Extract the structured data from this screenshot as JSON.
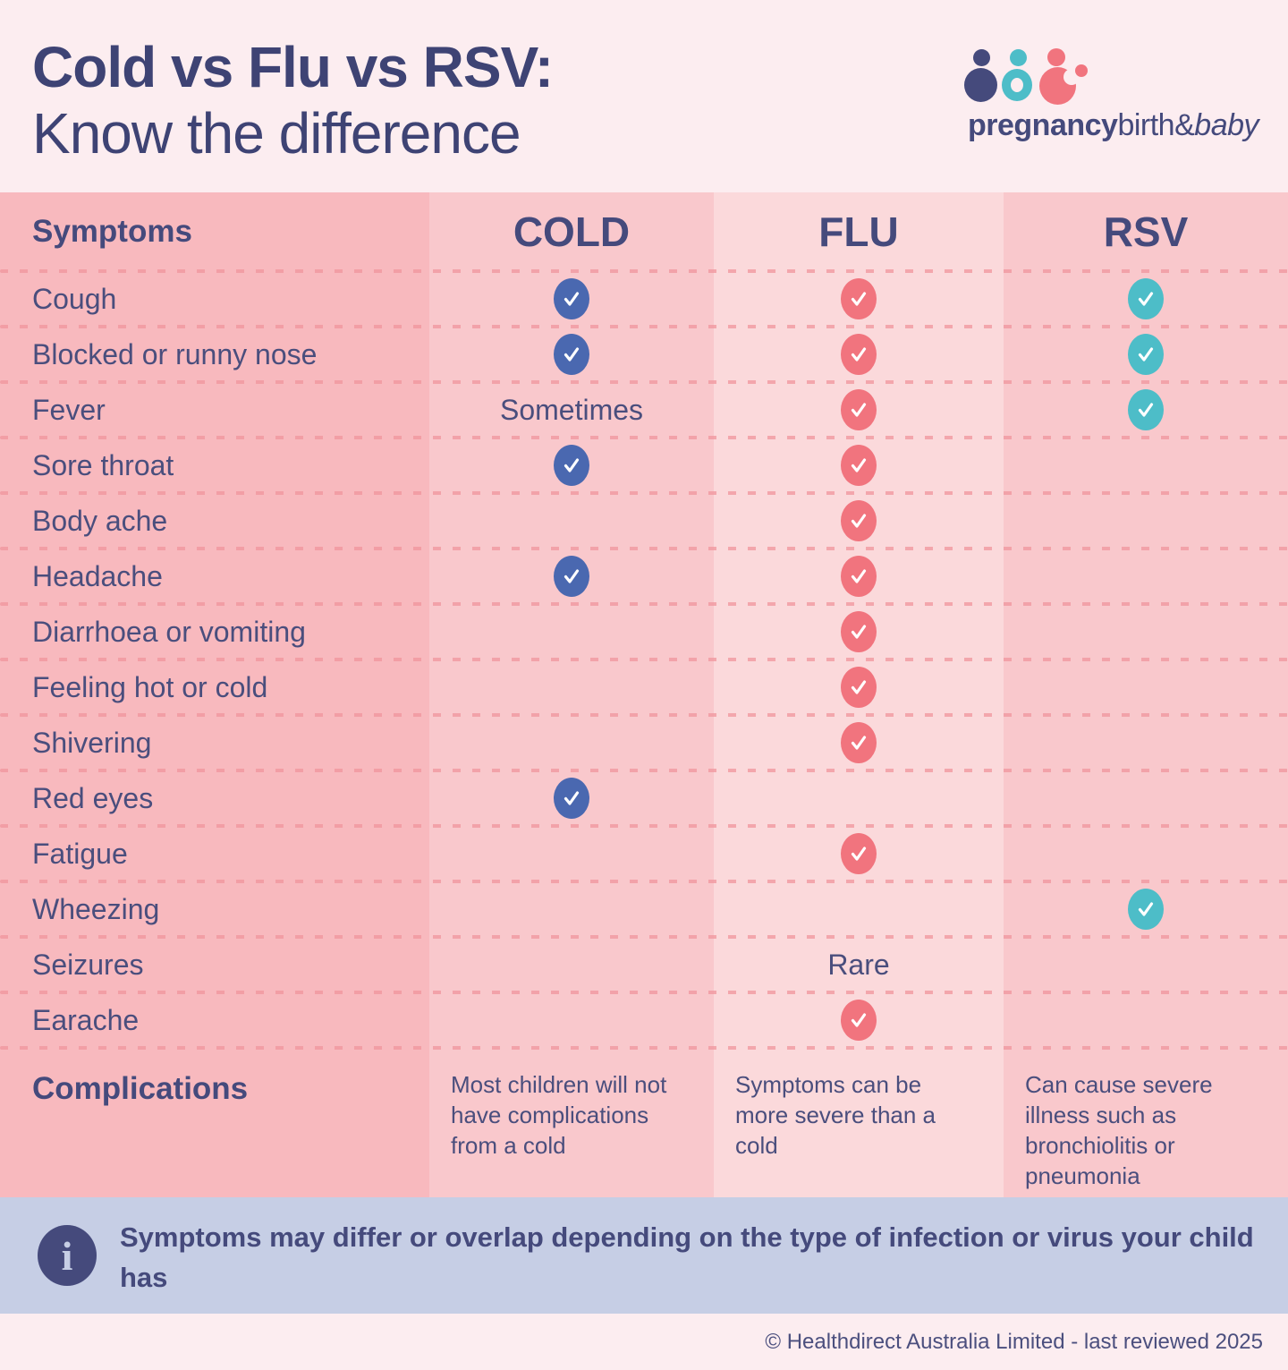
{
  "colors": {
    "navy": "#454a7c",
    "page_bg": "#fcedf0",
    "col_symptoms_bg": "#f8b9be",
    "col_cold_bg": "#f9c8cc",
    "col_flu_bg": "#fbd9db",
    "col_rsv_bg": "#f9c8cc",
    "check_blue": "#4a68b0",
    "check_red": "#f1747e",
    "check_teal": "#4dbdc8",
    "info_bar_bg": "#c6cee5",
    "dots": "#f0959d"
  },
  "header": {
    "title_line1": "Cold vs Flu vs RSV:",
    "title_line2": "Know the difference",
    "logo": {
      "part_bold": "pregnancy",
      "part_regular": "birth&",
      "part_italic": "baby"
    }
  },
  "table": {
    "columns": {
      "symptoms": "Symptoms",
      "cold": "COLD",
      "flu": "FLU",
      "rsv": "RSV"
    },
    "rows": [
      {
        "label": "Cough",
        "cold": "check-blue",
        "flu": "check-red",
        "rsv": "check-teal"
      },
      {
        "label": "Blocked or runny nose",
        "cold": "check-blue",
        "flu": "check-red",
        "rsv": "check-teal"
      },
      {
        "label": "Fever",
        "cold": "Sometimes",
        "flu": "check-red",
        "rsv": "check-teal"
      },
      {
        "label": "Sore throat",
        "cold": "check-blue",
        "flu": "check-red",
        "rsv": ""
      },
      {
        "label": "Body ache",
        "cold": "",
        "flu": "check-red",
        "rsv": ""
      },
      {
        "label": "Headache",
        "cold": "check-blue",
        "flu": "check-red",
        "rsv": ""
      },
      {
        "label": "Diarrhoea or vomiting",
        "cold": "",
        "flu": "check-red",
        "rsv": ""
      },
      {
        "label": "Feeling hot or cold",
        "cold": "",
        "flu": "check-red",
        "rsv": ""
      },
      {
        "label": "Shivering",
        "cold": "",
        "flu": "check-red",
        "rsv": ""
      },
      {
        "label": "Red eyes",
        "cold": "check-blue",
        "flu": "",
        "rsv": ""
      },
      {
        "label": "Fatigue",
        "cold": "",
        "flu": "check-red",
        "rsv": ""
      },
      {
        "label": "Wheezing",
        "cold": "",
        "flu": "",
        "rsv": "check-teal"
      },
      {
        "label": "Seizures",
        "cold": "",
        "flu": "Rare",
        "rsv": ""
      },
      {
        "label": "Earache",
        "cold": "",
        "flu": "check-red",
        "rsv": ""
      }
    ],
    "complications": {
      "label": "Complications",
      "cold": "Most children will not have complications from a cold",
      "flu": "Symptoms can be more severe than a cold",
      "rsv": "Can cause severe illness such as bronchiolitis or pneumonia"
    }
  },
  "info_bar": {
    "text": "Symptoms may differ or overlap depending on the type of infection or virus your child has"
  },
  "footer": {
    "text": "© Healthdirect Australia Limited - last reviewed 2025"
  }
}
